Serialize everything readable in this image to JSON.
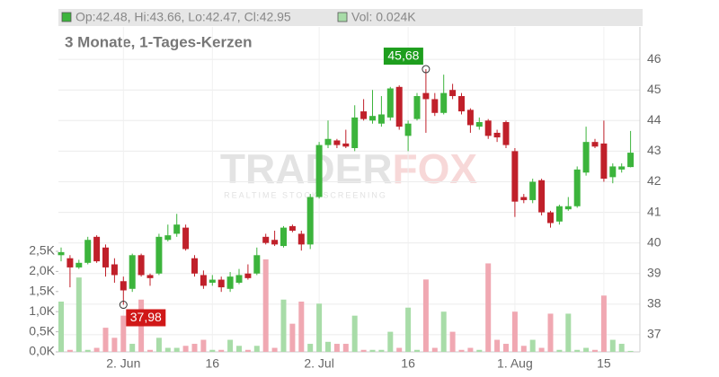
{
  "chart_data": {
    "type": "candlestick",
    "header": "Op:42.48, Hi:43.66, Lo:42.47, Cl:42.95",
    "volume_header": "Vol: 0.024K",
    "subtitle": "3 Monate, 1-Tages-Kerzen",
    "watermark": [
      "TRADER",
      "FOX"
    ],
    "watermark_tagline": "REALTIME STOCK SCREENING",
    "categories": [
      null,
      null,
      null,
      null,
      null,
      null,
      null,
      "2. Jun",
      null,
      null,
      null,
      null,
      null,
      null,
      null,
      null,
      null,
      "16",
      null,
      null,
      null,
      null,
      null,
      null,
      null,
      null,
      null,
      null,
      null,
      "2. Jul",
      null,
      null,
      null,
      null,
      null,
      null,
      null,
      null,
      null,
      "16",
      null,
      null,
      null,
      null,
      null,
      null,
      null,
      null,
      null,
      null,
      null,
      "1. Aug",
      null,
      null,
      null,
      null,
      null,
      null,
      null,
      null,
      null,
      "15",
      null,
      null,
      null
    ],
    "open": [
      39.6,
      39.5,
      39.2,
      39.35,
      40.2,
      39.85,
      39.3,
      38.75,
      38.5,
      39.6,
      38.95,
      39.0,
      40.1,
      40.3,
      40.5,
      39.5,
      38.95,
      38.7,
      38.8,
      38.5,
      38.7,
      39.0,
      39.0,
      40.2,
      40.1,
      39.9,
      40.55,
      40.3,
      39.95,
      41.5,
      43.2,
      43.35,
      43.25,
      43.1,
      44.3,
      44.0,
      43.9,
      44.1,
      45.1,
      43.5,
      44.05,
      44.9,
      44.7,
      44.25,
      45.0,
      44.8,
      44.35,
      43.8,
      44.0,
      43.6,
      43.95,
      43.0,
      41.5,
      41.4,
      42.05,
      41.0,
      40.7,
      41.1,
      41.2,
      42.3,
      43.3,
      43.25,
      42.15,
      42.4,
      42.48
    ],
    "high": [
      39.85,
      39.6,
      39.45,
      40.2,
      40.25,
      39.95,
      39.5,
      38.9,
      39.65,
      39.65,
      39.0,
      40.3,
      40.6,
      40.95,
      40.6,
      39.6,
      39.1,
      38.95,
      38.9,
      39.05,
      39.15,
      39.3,
      39.85,
      40.3,
      40.4,
      40.55,
      40.6,
      40.4,
      41.6,
      43.3,
      44.0,
      43.4,
      43.7,
      44.5,
      44.7,
      45.0,
      44.8,
      45.1,
      45.15,
      44.0,
      44.9,
      45.68,
      44.9,
      45.5,
      45.2,
      44.9,
      44.4,
      44.1,
      44.05,
      43.7,
      44.0,
      43.1,
      41.6,
      42.1,
      42.1,
      41.05,
      41.25,
      41.5,
      42.5,
      43.8,
      43.4,
      44.0,
      42.6,
      42.6,
      43.66
    ],
    "low": [
      39.4,
      38.55,
      39.15,
      39.3,
      39.35,
      38.9,
      38.7,
      37.98,
      38.4,
      38.9,
      38.6,
      38.95,
      40.05,
      40.2,
      39.75,
      38.9,
      38.5,
      38.6,
      38.4,
      38.4,
      38.65,
      38.8,
      38.95,
      39.95,
      39.9,
      39.85,
      40.35,
      39.75,
      39.8,
      41.45,
      43.1,
      43.1,
      43.1,
      43.0,
      44.0,
      43.9,
      43.8,
      44.0,
      43.7,
      43.0,
      44.0,
      43.6,
      44.15,
      44.2,
      44.7,
      44.2,
      43.6,
      43.7,
      43.4,
      43.3,
      43.1,
      40.85,
      41.3,
      41.3,
      40.9,
      40.5,
      40.6,
      41.05,
      41.15,
      42.2,
      43.1,
      42.0,
      41.95,
      42.3,
      42.47
    ],
    "close": [
      39.7,
      39.2,
      39.35,
      40.1,
      39.4,
      39.2,
      38.95,
      38.45,
      39.6,
      38.95,
      38.85,
      40.2,
      40.25,
      40.6,
      39.8,
      39.0,
      38.6,
      38.8,
      38.55,
      38.9,
      38.95,
      38.85,
      39.6,
      40.0,
      39.95,
      40.5,
      40.4,
      39.95,
      41.5,
      43.2,
      43.4,
      43.2,
      43.15,
      44.1,
      44.05,
      44.15,
      44.2,
      45.05,
      43.8,
      43.9,
      44.8,
      44.7,
      44.25,
      44.9,
      44.8,
      44.3,
      43.85,
      43.95,
      43.5,
      43.45,
      43.2,
      41.35,
      41.4,
      42.0,
      41.0,
      40.65,
      41.2,
      41.2,
      42.4,
      43.3,
      43.15,
      42.1,
      42.5,
      42.5,
      42.95
    ],
    "volume": [
      1.25,
      0.05,
      1.85,
      0.05,
      0.1,
      0.6,
      0.35,
      0.9,
      0.2,
      1.3,
      0.05,
      0.35,
      0.1,
      0.1,
      0.15,
      0.2,
      0.3,
      0.05,
      0.05,
      0.3,
      0.15,
      0.05,
      0.15,
      2.3,
      0.1,
      1.3,
      0.7,
      1.25,
      0.2,
      1.2,
      0.25,
      0.2,
      0.2,
      0.9,
      0.05,
      0.05,
      0.05,
      0.5,
      0.1,
      1.1,
      0.05,
      1.8,
      0.1,
      1.0,
      0.5,
      0.05,
      0.1,
      0.05,
      2.2,
      0.3,
      0.2,
      1.0,
      0.15,
      0.3,
      0.1,
      0.95,
      0.05,
      0.95,
      0.05,
      0.1,
      0.05,
      1.4,
      0.3,
      0.2,
      0.024
    ],
    "up_color": "#3cb43c",
    "down_color": "#c0202a",
    "volume_up_color": "#a8dca8",
    "volume_down_color": "#f0a8b2",
    "ylim": [
      36.44,
      47.06
    ],
    "yticks": [
      37,
      38,
      39,
      40,
      41,
      42,
      43,
      44,
      45,
      46
    ],
    "y2lim": [
      0,
      8.08
    ],
    "y2ticks": [
      {
        "value": 0,
        "label": "0,0K"
      },
      {
        "value": 0.5,
        "label": "0,5K"
      },
      {
        "value": 1,
        "label": "1,0K"
      },
      {
        "value": 1.5,
        "label": "1,5K"
      },
      {
        "value": 2,
        "label": "2,0K"
      },
      {
        "value": 2.5,
        "label": "2,5K"
      }
    ],
    "annotations": [
      {
        "label": "45,68",
        "value": 45.68
      },
      {
        "label": "37,98",
        "value": 37.98
      }
    ],
    "grid": true
  }
}
